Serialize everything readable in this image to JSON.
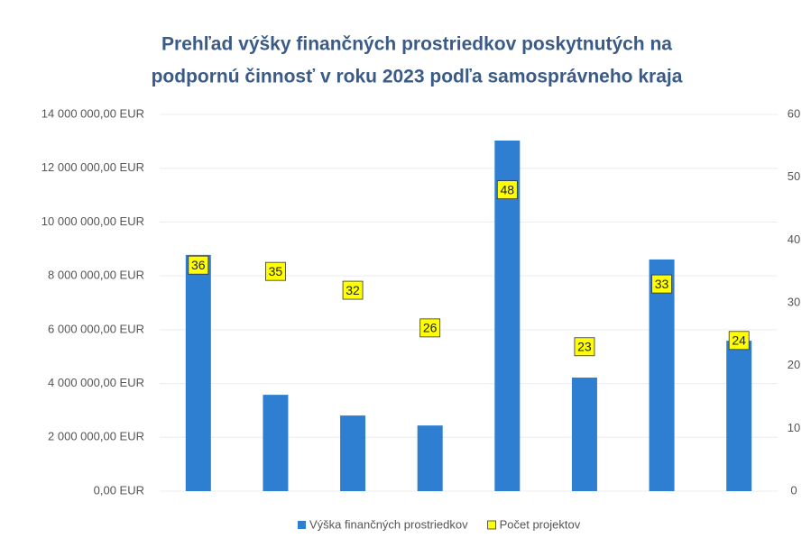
{
  "chart_data": {
    "type": "bar",
    "title": [
      "Prehľad výšky finančných prostriedkov poskytnutých na",
      "podpornú činnosť v roku 2023 podľa samosprávneho kraja"
    ],
    "categories": [
      null,
      null,
      null,
      null,
      null,
      null,
      null,
      null
    ],
    "series": [
      {
        "name": "Výška finančných prostriedkov",
        "type": "bar",
        "color": "#2e7fd1",
        "values": [
          8780000,
          3580000,
          2810000,
          2440000,
          13030000,
          4220000,
          8610000,
          5590000
        ]
      },
      {
        "name": "Počet projektov",
        "type": "scatter",
        "color": "#ffff00",
        "axis": "y2",
        "values": [
          36,
          35,
          32,
          26,
          48,
          23,
          33,
          24
        ]
      }
    ],
    "ylim": [
      0,
      14000000
    ],
    "yticks": [
      {
        "value": 0,
        "label": "0,00 EUR"
      },
      {
        "value": 2000000,
        "label": "2 000 000,00 EUR"
      },
      {
        "value": 4000000,
        "label": "4 000 000,00 EUR"
      },
      {
        "value": 6000000,
        "label": "6 000 000,00 EUR"
      },
      {
        "value": 8000000,
        "label": "8 000 000,00 EUR"
      },
      {
        "value": 10000000,
        "label": "10 000 000,00 EUR"
      },
      {
        "value": 12000000,
        "label": "12 000 000,00 EUR"
      },
      {
        "value": 14000000,
        "label": "14 000 000,00 EUR"
      }
    ],
    "y2lim": [
      0,
      60
    ],
    "y2ticks": [
      0,
      10,
      20,
      30,
      40,
      50,
      60
    ],
    "grid": true,
    "legend": "bottom"
  }
}
